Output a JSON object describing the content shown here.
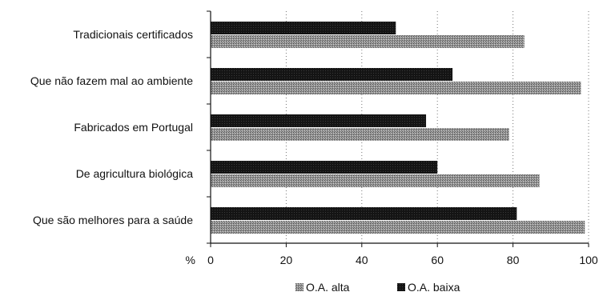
{
  "chart_data": {
    "type": "bar",
    "orientation": "horizontal",
    "categories": [
      "Tradicionais certificados",
      "Que não fazem mal ao ambiente",
      "Fabricados em Portugal",
      "De agricultura biológica",
      "Que são melhores para a saúde"
    ],
    "series": [
      {
        "name": "O.A. baixa",
        "values": [
          49,
          64,
          57,
          60,
          81
        ],
        "color": "#1a1a1a"
      },
      {
        "name": "O.A. alta",
        "values": [
          83,
          98,
          79,
          87,
          99
        ],
        "color": "#8a8a8a"
      }
    ],
    "legend_order": [
      "O.A. alta",
      "O.A. baixa"
    ],
    "xlabel": "%",
    "xlim": [
      0,
      100
    ],
    "xticks": [
      0,
      20,
      40,
      60,
      80,
      100
    ],
    "grid": "vertical dotted",
    "legend": "bottom"
  }
}
